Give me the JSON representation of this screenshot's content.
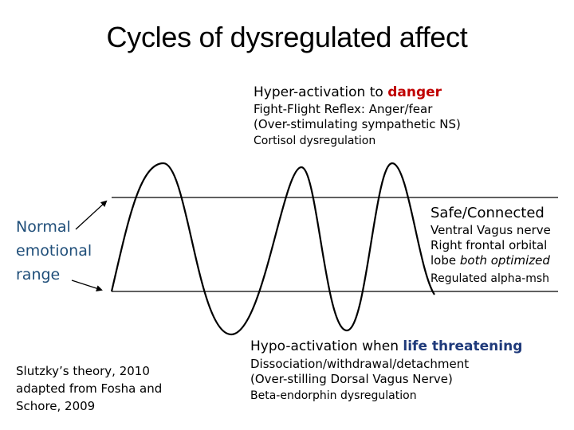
{
  "title": "Cycles of dysregulated affect",
  "hyper": {
    "prefix": "Hyper-activation to ",
    "emphasis": "danger",
    "line1": "Fight-Flight Reflex: Anger/fear",
    "line2": "(Over-stimulating sympathetic  NS)",
    "line3": "Cortisol dysregulation"
  },
  "safe": {
    "heading": "Safe/Connected",
    "line1": "Ventral Vagus nerve",
    "line2": "Right frontal orbital",
    "line3_prefix": "lobe ",
    "line3_emphasis": "both optimized",
    "line4": "Regulated alpha-msh"
  },
  "normal_range": {
    "line1": "Normal",
    "line2": "emotional",
    "line3": "range"
  },
  "hypo": {
    "prefix": "Hypo-activation when ",
    "emphasis": "life threatening",
    "line1": "Dissociation/withdrawal/detachment",
    "line2": "(Over-stilling Dorsal Vagus Nerve)",
    "line3": "Beta-endorphin dysregulation"
  },
  "credit": {
    "line1": "Slutzky’s theory, 2010",
    "line2": "adapted from Fosha and",
    "line3": "Schore, 2009"
  },
  "colors": {
    "danger": "#c00000",
    "threatening": "#1f3a7a",
    "normal_label": "#1f4e79"
  }
}
